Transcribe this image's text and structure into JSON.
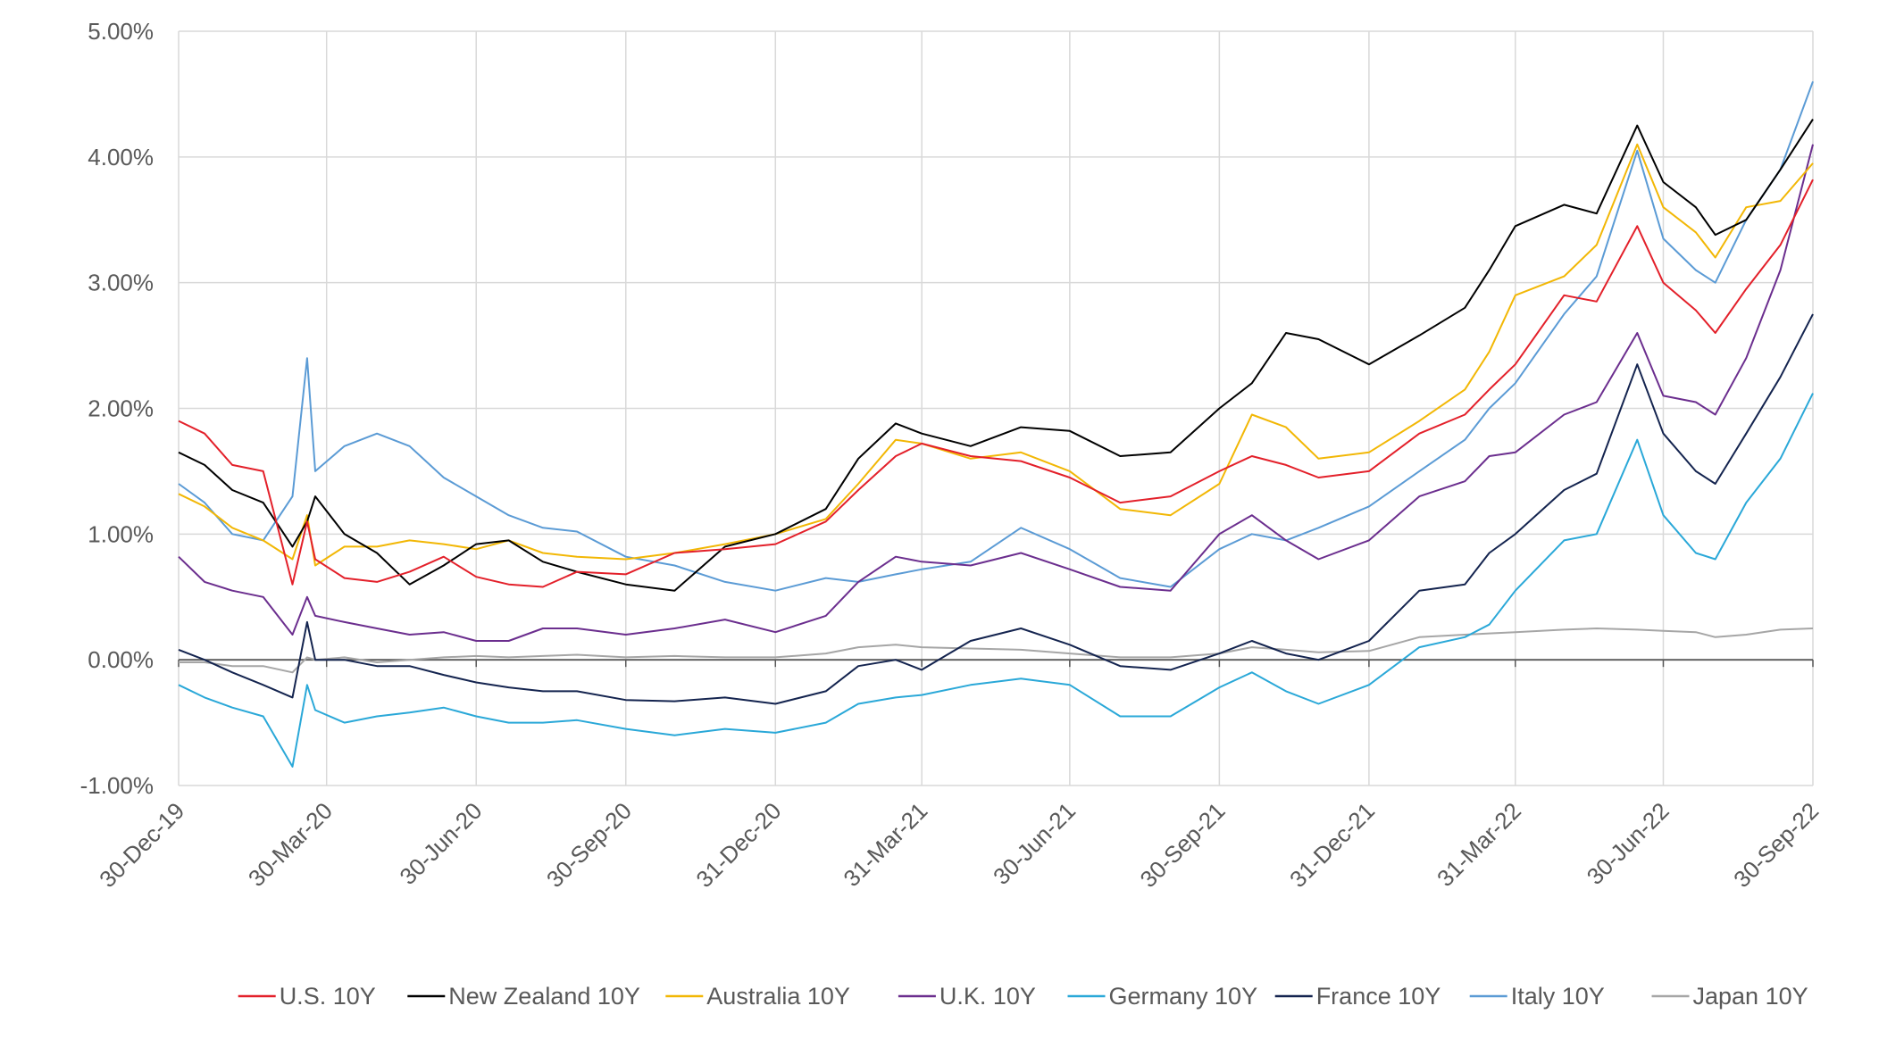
{
  "chart_data": {
    "type": "line",
    "title": "",
    "xlabel": "",
    "ylabel": "",
    "ylim": [
      -1.0,
      5.0
    ],
    "yticks": [
      -1.0,
      0.0,
      1.0,
      2.0,
      3.0,
      4.0,
      5.0
    ],
    "ytick_labels": [
      "-1.00%",
      "0.00%",
      "1.00%",
      "2.00%",
      "3.00%",
      "4.00%",
      "5.00%"
    ],
    "x_range": [
      "2019-12-30",
      "2022-09-30"
    ],
    "xticks": [
      "2019-12-30",
      "2020-03-30",
      "2020-06-30",
      "2020-09-30",
      "2020-12-31",
      "2021-03-31",
      "2021-06-30",
      "2021-09-30",
      "2021-12-31",
      "2022-03-31",
      "2022-06-30",
      "2022-09-30"
    ],
    "xtick_labels": [
      "30-Dec-19",
      "30-Mar-20",
      "30-Jun-20",
      "30-Sep-20",
      "31-Dec-20",
      "31-Mar-21",
      "30-Jun-21",
      "30-Sep-21",
      "31-Dec-21",
      "31-Mar-22",
      "30-Jun-22",
      "30-Sep-22"
    ],
    "grid": "vertical and horizontal",
    "legend_position": "bottom",
    "dates": [
      "2019-12-30",
      "2020-01-15",
      "2020-02-01",
      "2020-02-20",
      "2020-03-09",
      "2020-03-18",
      "2020-03-23",
      "2020-04-10",
      "2020-04-30",
      "2020-05-20",
      "2020-06-10",
      "2020-06-30",
      "2020-07-20",
      "2020-08-10",
      "2020-08-31",
      "2020-09-30",
      "2020-10-30",
      "2020-11-30",
      "2020-12-31",
      "2021-01-31",
      "2021-02-20",
      "2021-03-15",
      "2021-03-31",
      "2021-04-30",
      "2021-05-31",
      "2021-06-30",
      "2021-07-31",
      "2021-08-31",
      "2021-09-30",
      "2021-10-20",
      "2021-11-10",
      "2021-11-30",
      "2021-12-31",
      "2022-01-31",
      "2022-02-28",
      "2022-03-15",
      "2022-03-31",
      "2022-04-30",
      "2022-05-20",
      "2022-06-14",
      "2022-06-30",
      "2022-07-20",
      "2022-08-01",
      "2022-08-20",
      "2022-09-10",
      "2022-09-30"
    ],
    "series": [
      {
        "name": "U.S. 10Y",
        "color": "#e3202a",
        "values": [
          1.9,
          1.8,
          1.55,
          1.5,
          0.6,
          1.1,
          0.8,
          0.65,
          0.62,
          0.7,
          0.82,
          0.66,
          0.6,
          0.58,
          0.7,
          0.68,
          0.85,
          0.88,
          0.92,
          1.1,
          1.35,
          1.62,
          1.72,
          1.62,
          1.58,
          1.45,
          1.25,
          1.3,
          1.5,
          1.62,
          1.55,
          1.45,
          1.5,
          1.8,
          1.95,
          2.15,
          2.35,
          2.9,
          2.85,
          3.45,
          3.0,
          2.78,
          2.6,
          2.95,
          3.3,
          3.82
        ]
      },
      {
        "name": "New Zealand 10Y",
        "color": "#000000",
        "values": [
          1.65,
          1.55,
          1.35,
          1.25,
          0.9,
          1.1,
          1.3,
          1.0,
          0.85,
          0.6,
          0.75,
          0.92,
          0.95,
          0.78,
          0.7,
          0.6,
          0.55,
          0.9,
          1.0,
          1.2,
          1.6,
          1.88,
          1.8,
          1.7,
          1.85,
          1.82,
          1.62,
          1.65,
          2.0,
          2.2,
          2.6,
          2.55,
          2.35,
          2.58,
          2.8,
          3.1,
          3.45,
          3.62,
          3.55,
          4.25,
          3.8,
          3.6,
          3.38,
          3.5,
          3.9,
          4.3
        ]
      },
      {
        "name": "Australia 10Y",
        "color": "#f2b705",
        "values": [
          1.32,
          1.22,
          1.05,
          0.95,
          0.8,
          1.15,
          0.75,
          0.9,
          0.9,
          0.95,
          0.92,
          0.88,
          0.95,
          0.85,
          0.82,
          0.8,
          0.85,
          0.92,
          1.0,
          1.12,
          1.4,
          1.75,
          1.72,
          1.6,
          1.65,
          1.5,
          1.2,
          1.15,
          1.4,
          1.95,
          1.85,
          1.6,
          1.65,
          1.9,
          2.15,
          2.45,
          2.9,
          3.05,
          3.3,
          4.1,
          3.6,
          3.4,
          3.2,
          3.6,
          3.65,
          3.95
        ]
      },
      {
        "name": "U.K. 10Y",
        "color": "#6b2e8e",
        "values": [
          0.82,
          0.62,
          0.55,
          0.5,
          0.2,
          0.5,
          0.35,
          0.3,
          0.25,
          0.2,
          0.22,
          0.15,
          0.15,
          0.25,
          0.25,
          0.2,
          0.25,
          0.32,
          0.22,
          0.35,
          0.62,
          0.82,
          0.78,
          0.75,
          0.85,
          0.72,
          0.58,
          0.55,
          1.0,
          1.15,
          0.95,
          0.8,
          0.95,
          1.3,
          1.42,
          1.62,
          1.65,
          1.95,
          2.05,
          2.6,
          2.1,
          2.05,
          1.95,
          2.4,
          3.1,
          4.1
        ]
      },
      {
        "name": "Germany 10Y",
        "color": "#2aa8d8",
        "values": [
          -0.2,
          -0.3,
          -0.38,
          -0.45,
          -0.85,
          -0.2,
          -0.4,
          -0.5,
          -0.45,
          -0.42,
          -0.38,
          -0.45,
          -0.5,
          -0.5,
          -0.48,
          -0.55,
          -0.6,
          -0.55,
          -0.58,
          -0.5,
          -0.35,
          -0.3,
          -0.28,
          -0.2,
          -0.15,
          -0.2,
          -0.45,
          -0.45,
          -0.22,
          -0.1,
          -0.25,
          -0.35,
          -0.2,
          0.1,
          0.18,
          0.28,
          0.55,
          0.95,
          1.0,
          1.75,
          1.15,
          0.85,
          0.8,
          1.25,
          1.6,
          2.12
        ]
      },
      {
        "name": "France 10Y",
        "color": "#14244f",
        "values": [
          0.08,
          0.0,
          -0.1,
          -0.2,
          -0.3,
          0.3,
          0.0,
          0.0,
          -0.05,
          -0.05,
          -0.12,
          -0.18,
          -0.22,
          -0.25,
          -0.25,
          -0.32,
          -0.33,
          -0.3,
          -0.35,
          -0.25,
          -0.05,
          0.0,
          -0.08,
          0.15,
          0.25,
          0.12,
          -0.05,
          -0.08,
          0.05,
          0.15,
          0.05,
          0.0,
          0.15,
          0.55,
          0.6,
          0.85,
          1.0,
          1.35,
          1.48,
          2.35,
          1.8,
          1.5,
          1.4,
          1.8,
          2.25,
          2.75
        ]
      },
      {
        "name": "Italy 10Y",
        "color": "#5b9bd5",
        "values": [
          1.4,
          1.25,
          1.0,
          0.95,
          1.3,
          2.4,
          1.5,
          1.7,
          1.8,
          1.7,
          1.45,
          1.3,
          1.15,
          1.05,
          1.02,
          0.82,
          0.75,
          0.62,
          0.55,
          0.65,
          0.62,
          0.68,
          0.72,
          0.78,
          1.05,
          0.88,
          0.65,
          0.58,
          0.88,
          1.0,
          0.95,
          1.05,
          1.22,
          1.5,
          1.75,
          2.0,
          2.2,
          2.75,
          3.05,
          4.05,
          3.35,
          3.1,
          3.0,
          3.5,
          3.9,
          4.6
        ]
      },
      {
        "name": "Japan 10Y",
        "color": "#a6a6a6",
        "values": [
          -0.02,
          -0.02,
          -0.05,
          -0.05,
          -0.1,
          0.02,
          0.0,
          0.02,
          -0.02,
          0.0,
          0.02,
          0.03,
          0.02,
          0.03,
          0.04,
          0.02,
          0.03,
          0.02,
          0.02,
          0.05,
          0.1,
          0.12,
          0.1,
          0.09,
          0.08,
          0.05,
          0.02,
          0.02,
          0.05,
          0.1,
          0.08,
          0.06,
          0.07,
          0.18,
          0.2,
          0.21,
          0.22,
          0.24,
          0.25,
          0.24,
          0.23,
          0.22,
          0.18,
          0.2,
          0.24,
          0.25
        ]
      }
    ]
  }
}
